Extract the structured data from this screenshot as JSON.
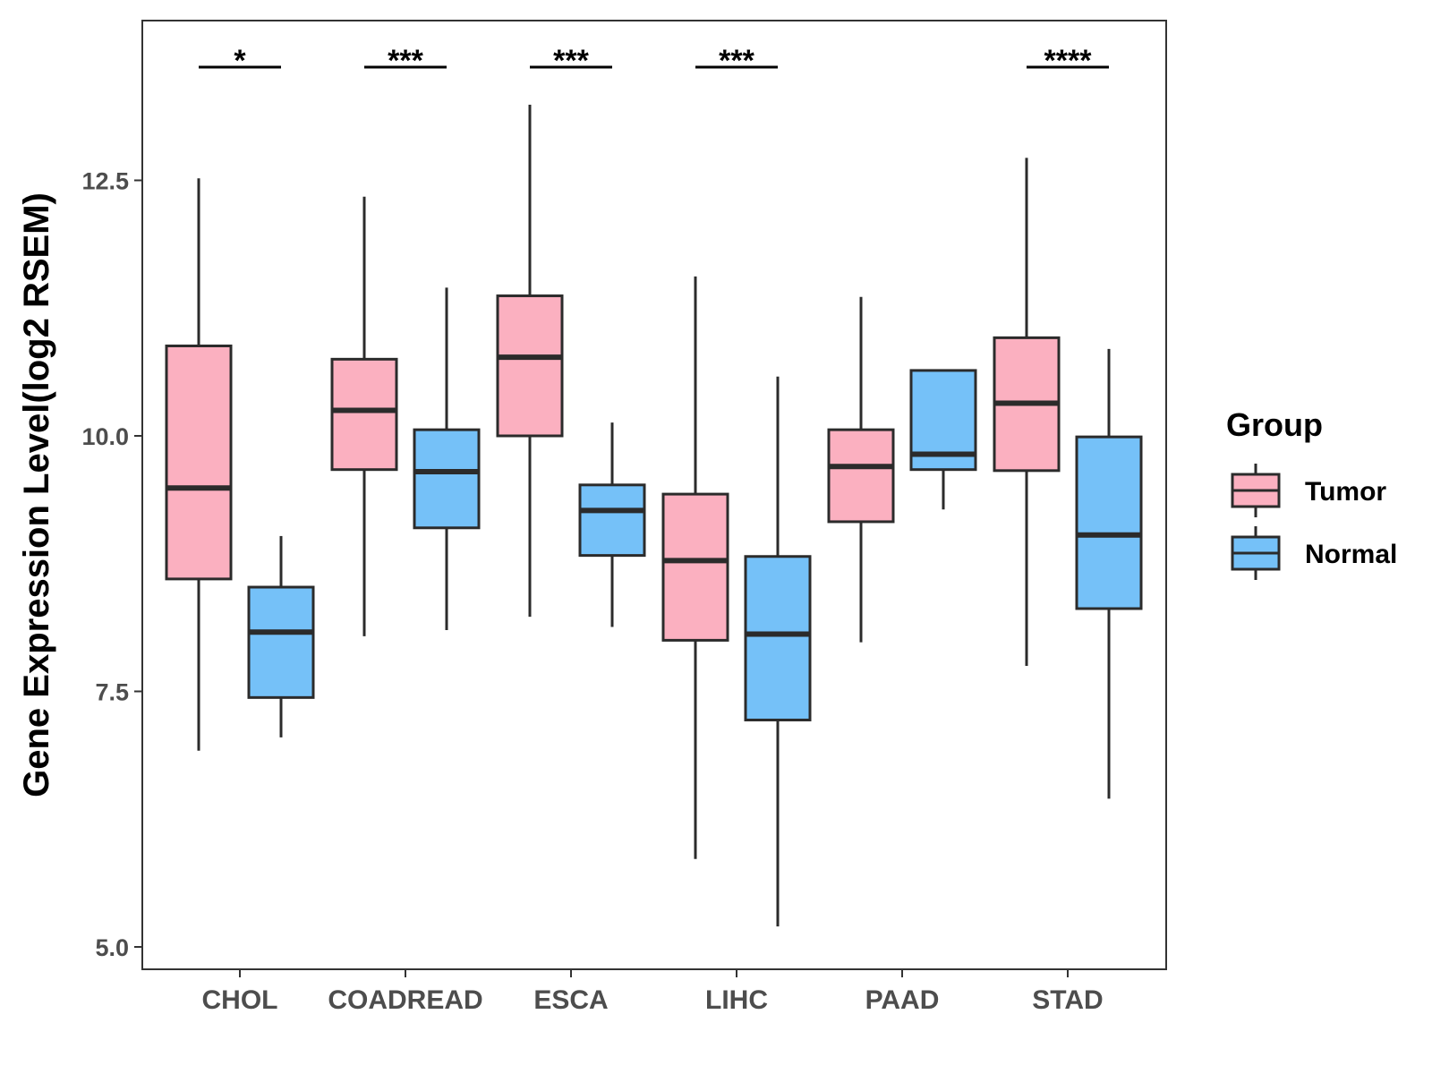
{
  "chart_data": {
    "type": "boxplot",
    "title": "",
    "xlabel": "",
    "ylabel": "Gene Expression Level(log2 RSEM)",
    "ylim": [
      4.8,
      14.1
    ],
    "y_ticks": [
      5.0,
      7.5,
      10.0,
      12.5
    ],
    "y_tick_labels": [
      "5.0",
      "7.5",
      "10.0",
      "12.5"
    ],
    "grid": false,
    "categories": [
      "CHOL",
      "COADREAD",
      "ESCA",
      "LIHC",
      "PAAD",
      "STAD"
    ],
    "series": [
      {
        "name": "Tumor",
        "color": "#fbb0c0",
        "boxes": [
          {
            "min": 6.92,
            "q1": 8.6,
            "median": 9.49,
            "q3": 10.88,
            "max": 12.52
          },
          {
            "min": 8.04,
            "q1": 9.67,
            "median": 10.25,
            "q3": 10.75,
            "max": 12.34
          },
          {
            "min": 8.23,
            "q1": 10.0,
            "median": 10.77,
            "q3": 11.37,
            "max": 13.24
          },
          {
            "min": 5.86,
            "q1": 8.0,
            "median": 8.78,
            "q3": 9.43,
            "max": 11.56
          },
          {
            "min": 7.98,
            "q1": 9.16,
            "median": 9.7,
            "q3": 10.06,
            "max": 11.36
          },
          {
            "min": 7.75,
            "q1": 9.66,
            "median": 10.32,
            "q3": 10.96,
            "max": 12.72
          }
        ]
      },
      {
        "name": "Normal",
        "color": "#75c1f8",
        "boxes": [
          {
            "min": 7.05,
            "q1": 7.44,
            "median": 8.08,
            "q3": 8.52,
            "max": 9.02
          },
          {
            "min": 8.1,
            "q1": 9.1,
            "median": 9.65,
            "q3": 10.06,
            "max": 11.45
          },
          {
            "min": 8.13,
            "q1": 8.83,
            "median": 9.27,
            "q3": 9.52,
            "max": 10.13
          },
          {
            "min": 5.2,
            "q1": 7.22,
            "median": 8.06,
            "q3": 8.82,
            "max": 10.58
          },
          {
            "min": 9.28,
            "q1": 9.67,
            "median": 9.82,
            "q3": 10.64,
            "max": 10.64
          },
          {
            "min": 6.45,
            "q1": 8.31,
            "median": 9.03,
            "q3": 9.99,
            "max": 10.85
          }
        ]
      }
    ],
    "significance": [
      "*",
      "***",
      "***",
      "***",
      "",
      "****"
    ],
    "legend": {
      "title": "Group",
      "position": "right"
    }
  }
}
